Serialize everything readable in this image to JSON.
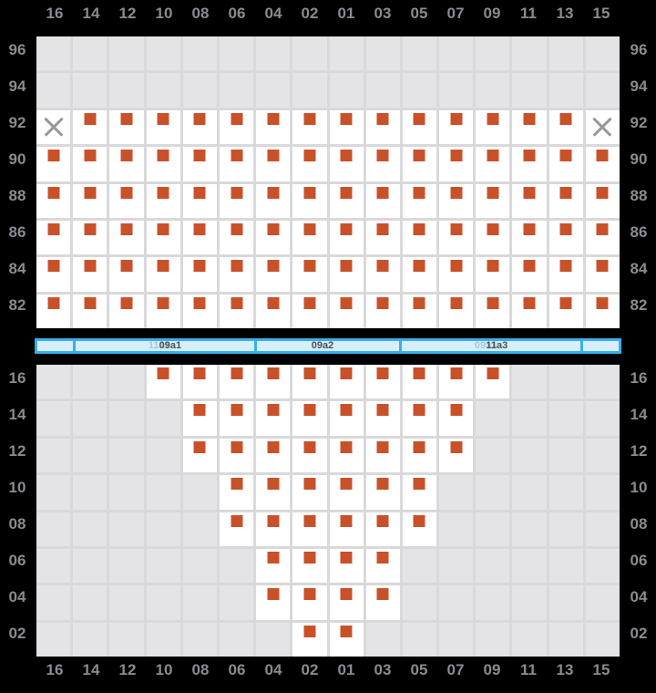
{
  "colors": {
    "bg": "#000000",
    "axis-label": "#8a8a92",
    "cell-empty": "#e4e4e6",
    "gridline": "#d9d9db",
    "cell-active": "#ffffff",
    "marker": "#c9512a",
    "x-mark": "#97979d",
    "band-fill": "#d9edfa",
    "band-border": "#35b1e9",
    "band-label-dark": "#4c5156",
    "band-label-faint": "#aac7d7"
  },
  "columns": [
    "16",
    "14",
    "12",
    "10",
    "08",
    "06",
    "04",
    "02",
    "01",
    "03",
    "05",
    "07",
    "09",
    "11",
    "13",
    "15"
  ],
  "cell_codes": {
    ".": "empty gray cell",
    "s": "orange square marker on white cell",
    "x": "gray cross mark on white cell"
  },
  "chart_data": {
    "type": "heatmap",
    "x_categories": [
      "16",
      "14",
      "12",
      "10",
      "08",
      "06",
      "04",
      "02",
      "01",
      "03",
      "05",
      "07",
      "09",
      "11",
      "13",
      "15"
    ],
    "top_panel": {
      "row_labels": [
        "96",
        "94",
        "92",
        "90",
        "88",
        "86",
        "84",
        "82"
      ],
      "rows": [
        "................",
        "................",
        "xssssssssssssssx",
        "ssssssssssssssss",
        "ssssssssssssssss",
        "ssssssssssssssss",
        "ssssssssssssssss",
        "ssssssssssssssss"
      ]
    },
    "bottom_panel": {
      "row_labels": [
        "16",
        "14",
        "12",
        "10",
        "08",
        "06",
        "04",
        "02"
      ],
      "rows": [
        "...ssssssssss...",
        "....ssssssss....",
        "....ssssssss....",
        ".....ssssss.....",
        ".....ssssss.....",
        "......ssss......",
        "......ssss......",
        ".......ss......."
      ]
    },
    "legend": "s = filled orange marker, x = gray cross (missing), . = empty cell"
  },
  "separator": {
    "segments": [
      {
        "span_columns": 1,
        "labels": []
      },
      {
        "span_columns": 5,
        "labels": [
          {
            "text": "11a1",
            "style": "faint"
          },
          {
            "text": "09a1",
            "style": "dark"
          }
        ]
      },
      {
        "span_columns": 4,
        "labels": [
          {
            "text": "09a2",
            "style": "dark"
          }
        ]
      },
      {
        "span_columns": 5,
        "labels": [
          {
            "text": "09a3",
            "style": "faint"
          },
          {
            "text": "11a3",
            "style": "dark"
          }
        ]
      },
      {
        "span_columns": 1,
        "labels": []
      }
    ]
  }
}
